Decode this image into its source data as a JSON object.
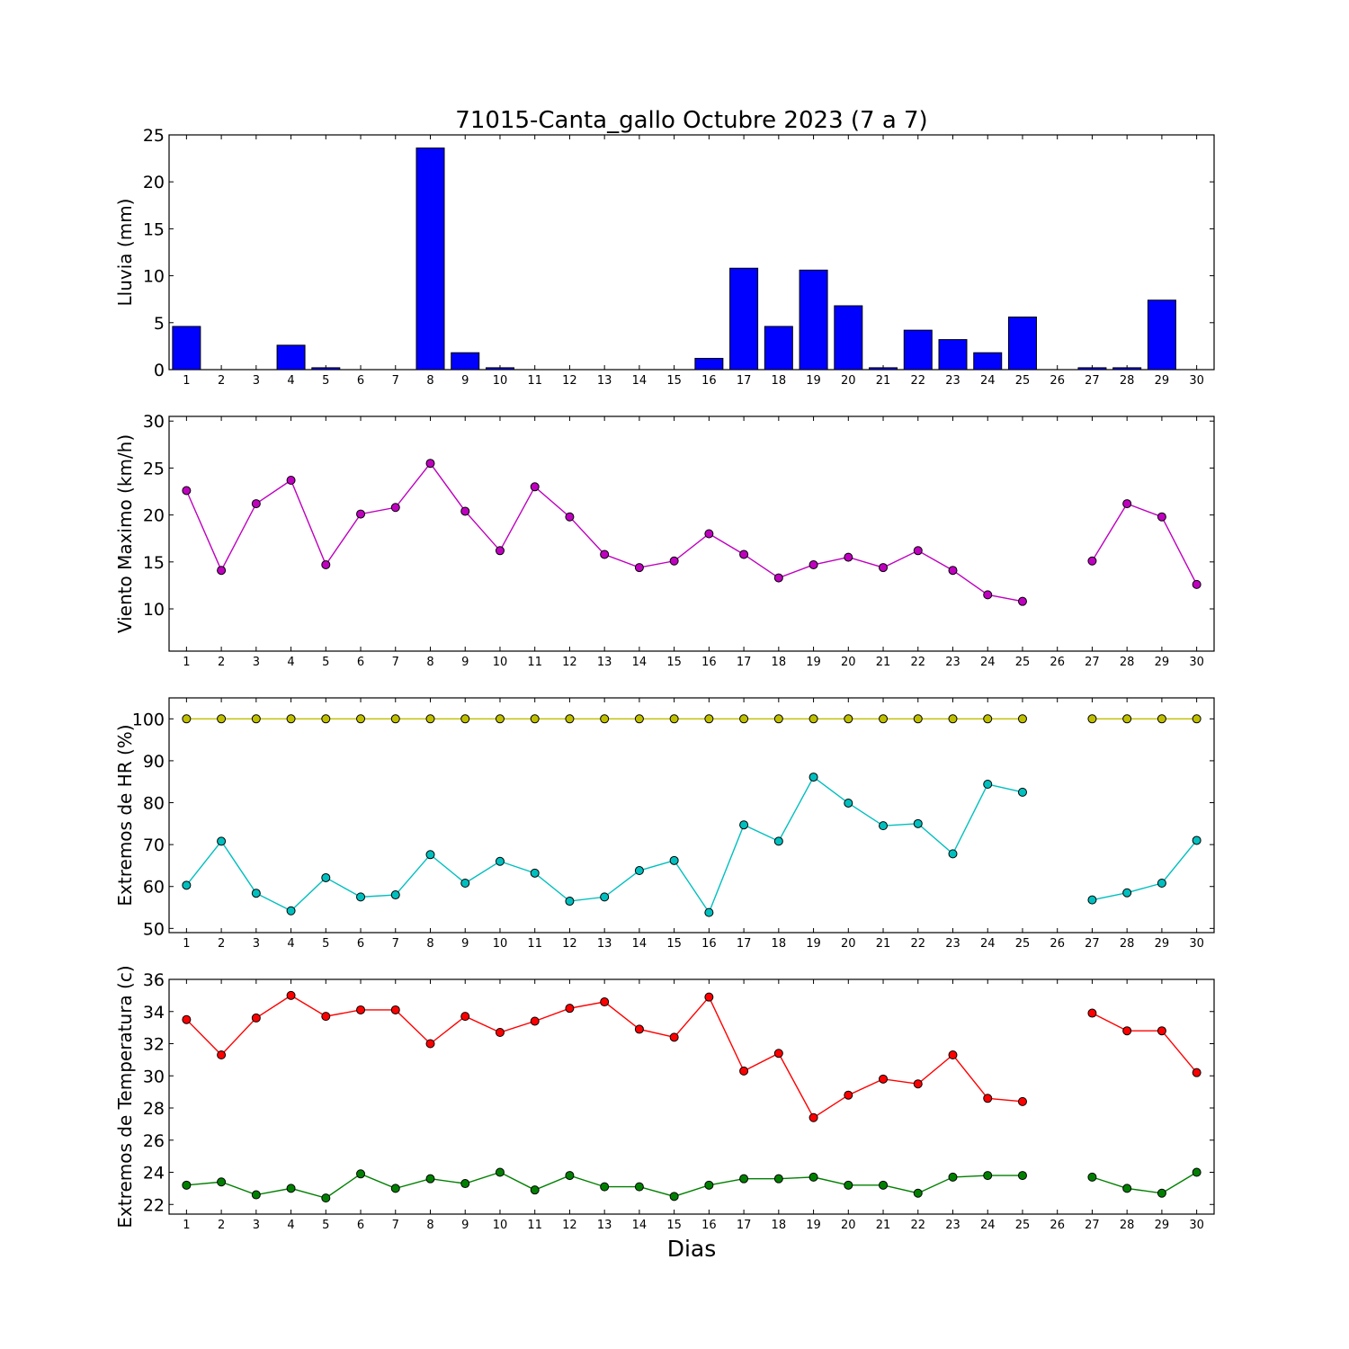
{
  "chart_data": [
    {
      "type": "bar",
      "title": "71015-Canta_gallo Octubre 2023  (7 a 7)",
      "ylabel": "Lluvia (mm)",
      "ylim": [
        0,
        25
      ],
      "yticks": [
        0,
        5,
        10,
        15,
        20,
        25
      ],
      "x": [
        1,
        2,
        3,
        4,
        5,
        6,
        7,
        8,
        9,
        10,
        11,
        12,
        13,
        14,
        15,
        16,
        17,
        18,
        19,
        20,
        21,
        22,
        23,
        24,
        25,
        26,
        27,
        28,
        29,
        30
      ],
      "series": [
        {
          "color": "#0000ff",
          "values": [
            4.6,
            0,
            0,
            2.6,
            0.2,
            0,
            0,
            23.6,
            1.8,
            0.2,
            0,
            0,
            0,
            0,
            0,
            1.2,
            10.8,
            4.6,
            10.6,
            6.8,
            0.2,
            4.2,
            3.2,
            1.8,
            5.6,
            null,
            0.2,
            0.2,
            7.4,
            0
          ]
        }
      ]
    },
    {
      "type": "line",
      "ylabel": "Viento Maximo (km/h)",
      "ylim": [
        5.5,
        30.5
      ],
      "yticks": [
        10,
        15,
        20,
        25,
        30
      ],
      "x": [
        1,
        2,
        3,
        4,
        5,
        6,
        7,
        8,
        9,
        10,
        11,
        12,
        13,
        14,
        15,
        16,
        17,
        18,
        19,
        20,
        21,
        22,
        23,
        24,
        25,
        26,
        27,
        28,
        29,
        30
      ],
      "series": [
        {
          "color": "#bf00bf",
          "values": [
            22.6,
            14.1,
            21.2,
            23.7,
            14.7,
            20.1,
            20.8,
            25.5,
            20.4,
            16.2,
            23.0,
            19.8,
            15.8,
            14.4,
            15.1,
            18.0,
            15.8,
            13.3,
            14.7,
            15.5,
            14.4,
            16.2,
            14.1,
            11.5,
            10.8,
            null,
            15.1,
            21.2,
            19.8,
            12.6
          ]
        }
      ]
    },
    {
      "type": "line",
      "ylabel": "Extremos de HR (%)",
      "ylim": [
        49,
        105
      ],
      "yticks": [
        50,
        60,
        70,
        80,
        90,
        100
      ],
      "x": [
        1,
        2,
        3,
        4,
        5,
        6,
        7,
        8,
        9,
        10,
        11,
        12,
        13,
        14,
        15,
        16,
        17,
        18,
        19,
        20,
        21,
        22,
        23,
        24,
        25,
        26,
        27,
        28,
        29,
        30
      ],
      "series": [
        {
          "color": "#bfbf00",
          "values": [
            100,
            100,
            100,
            100,
            100,
            100,
            100,
            100,
            100,
            100,
            100,
            100,
            100,
            100,
            100,
            100,
            100,
            100,
            100,
            100,
            100,
            100,
            100,
            100,
            100,
            null,
            100,
            100,
            100,
            100
          ]
        },
        {
          "color": "#00bfbf",
          "values": [
            60.3,
            70.8,
            58.4,
            54.2,
            62.1,
            57.5,
            58.0,
            67.6,
            60.8,
            66.0,
            63.2,
            56.5,
            57.5,
            63.8,
            66.2,
            53.8,
            74.7,
            70.8,
            86.1,
            79.9,
            74.5,
            75.0,
            67.8,
            84.4,
            82.5,
            null,
            56.8,
            58.5,
            60.8,
            71.0
          ]
        }
      ]
    },
    {
      "type": "line",
      "ylabel": "Extremos de Temperatura (c)",
      "xlabel": "Dias",
      "ylim": [
        21.4,
        36
      ],
      "yticks": [
        22,
        24,
        26,
        28,
        30,
        32,
        34,
        36
      ],
      "x": [
        1,
        2,
        3,
        4,
        5,
        6,
        7,
        8,
        9,
        10,
        11,
        12,
        13,
        14,
        15,
        16,
        17,
        18,
        19,
        20,
        21,
        22,
        23,
        24,
        25,
        26,
        27,
        28,
        29,
        30
      ],
      "series": [
        {
          "color": "#ff0000",
          "values": [
            33.5,
            31.3,
            33.6,
            35.0,
            33.7,
            34.1,
            34.1,
            32.0,
            33.7,
            32.7,
            33.4,
            34.2,
            34.6,
            32.9,
            32.4,
            34.9,
            30.3,
            31.4,
            27.4,
            28.8,
            29.8,
            29.5,
            31.3,
            28.6,
            28.4,
            null,
            33.9,
            32.8,
            32.8,
            30.2
          ]
        },
        {
          "color": "#008000",
          "values": [
            23.2,
            23.4,
            22.6,
            23.0,
            22.4,
            23.9,
            23.0,
            23.6,
            23.3,
            24.0,
            22.9,
            23.8,
            23.1,
            23.1,
            22.5,
            23.2,
            23.6,
            23.6,
            23.7,
            23.2,
            23.2,
            22.7,
            23.7,
            23.8,
            23.8,
            null,
            23.7,
            23.0,
            22.7,
            24.0
          ]
        }
      ]
    }
  ]
}
